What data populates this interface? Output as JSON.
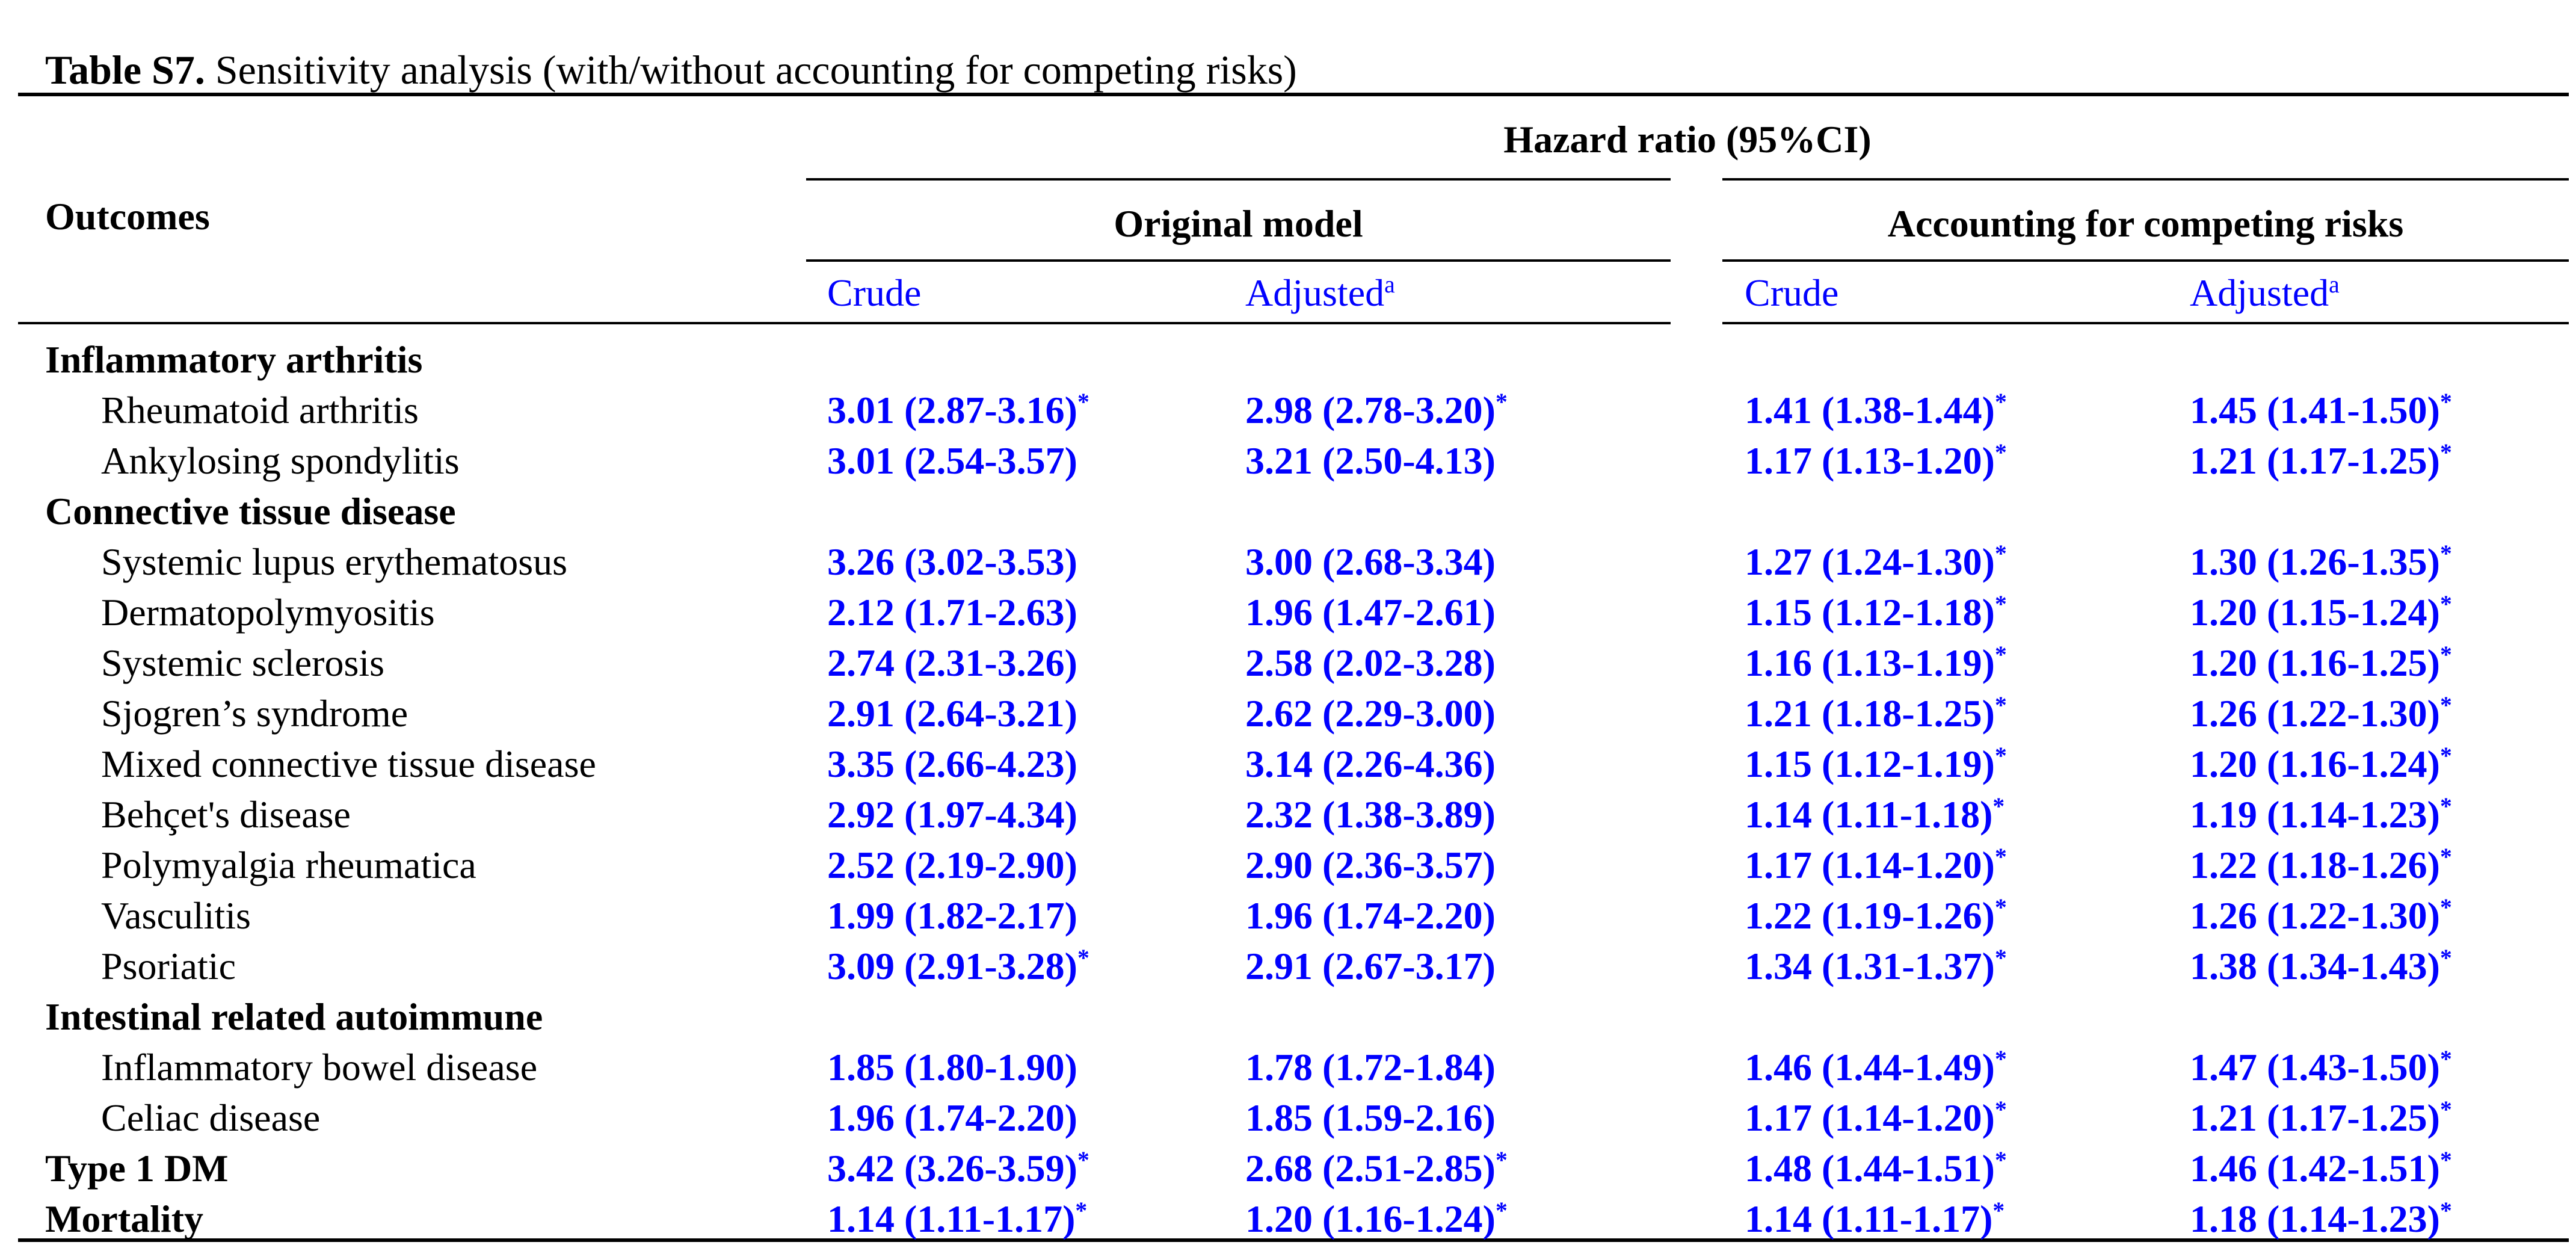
{
  "title": {
    "prefix": "Table S7.",
    "text": " Sensitivity analysis (with/without accounting for competing risks)"
  },
  "header": {
    "outcomes_label": "Outcomes",
    "span_label": "Hazard ratio (95%CI)",
    "group1_label": "Original model",
    "group2_label": "Accounting for competing risks",
    "crude_label": "Crude",
    "adjusted_label": "Adjusted",
    "adjusted_superscript": "a"
  },
  "symbols": {
    "significance_star": "*"
  },
  "colors": {
    "accent_blue": "#0101FE",
    "text_black": "#000000",
    "rule_black": "#000000"
  },
  "rows": [
    {
      "label": "Inflammatory arthritis",
      "category": true,
      "cells": null
    },
    {
      "label": "Rheumatoid arthritis",
      "category": false,
      "cells": [
        {
          "value": "3.01 (2.87-3.16)",
          "star": true
        },
        {
          "value": "2.98 (2.78-3.20)",
          "star": true
        },
        {
          "value": "1.41 (1.38-1.44)",
          "star": true
        },
        {
          "value": "1.45 (1.41-1.50)",
          "star": true
        }
      ]
    },
    {
      "label": "Ankylosing spondylitis",
      "category": false,
      "cells": [
        {
          "value": "3.01 (2.54-3.57)",
          "star": false
        },
        {
          "value": "3.21 (2.50-4.13)",
          "star": false
        },
        {
          "value": "1.17 (1.13-1.20)",
          "star": true
        },
        {
          "value": "1.21 (1.17-1.25)",
          "star": true
        }
      ]
    },
    {
      "label": "Connective tissue disease",
      "category": true,
      "cells": null
    },
    {
      "label": "Systemic lupus erythematosus",
      "category": false,
      "cells": [
        {
          "value": "3.26 (3.02-3.53)",
          "star": false
        },
        {
          "value": "3.00 (2.68-3.34)",
          "star": false
        },
        {
          "value": "1.27 (1.24-1.30)",
          "star": true
        },
        {
          "value": "1.30 (1.26-1.35)",
          "star": true
        }
      ]
    },
    {
      "label": "Dermatopolymyositis",
      "category": false,
      "cells": [
        {
          "value": "2.12 (1.71-2.63)",
          "star": false
        },
        {
          "value": "1.96 (1.47-2.61)",
          "star": false
        },
        {
          "value": "1.15 (1.12-1.18)",
          "star": true
        },
        {
          "value": "1.20 (1.15-1.24)",
          "star": true
        }
      ]
    },
    {
      "label": "Systemic sclerosis",
      "category": false,
      "cells": [
        {
          "value": "2.74 (2.31-3.26)",
          "star": false
        },
        {
          "value": "2.58 (2.02-3.28)",
          "star": false
        },
        {
          "value": "1.16 (1.13-1.19)",
          "star": true
        },
        {
          "value": "1.20 (1.16-1.25)",
          "star": true
        }
      ]
    },
    {
      "label": "Sjogren’s syndrome",
      "category": false,
      "cells": [
        {
          "value": "2.91 (2.64-3.21)",
          "star": false
        },
        {
          "value": "2.62 (2.29-3.00)",
          "star": false
        },
        {
          "value": "1.21 (1.18-1.25)",
          "star": true
        },
        {
          "value": "1.26 (1.22-1.30)",
          "star": true
        }
      ]
    },
    {
      "label": "Mixed connective tissue disease",
      "category": false,
      "cells": [
        {
          "value": "3.35 (2.66-4.23)",
          "star": false
        },
        {
          "value": "3.14 (2.26-4.36)",
          "star": false
        },
        {
          "value": "1.15 (1.12-1.19)",
          "star": true
        },
        {
          "value": "1.20 (1.16-1.24)",
          "star": true
        }
      ]
    },
    {
      "label": "Behçet's disease",
      "category": false,
      "cells": [
        {
          "value": "2.92 (1.97-4.34)",
          "star": false
        },
        {
          "value": "2.32 (1.38-3.89)",
          "star": false
        },
        {
          "value": "1.14 (1.11-1.18)",
          "star": true
        },
        {
          "value": "1.19 (1.14-1.23)",
          "star": true
        }
      ]
    },
    {
      "label": "Polymyalgia rheumatica",
      "category": false,
      "cells": [
        {
          "value": "2.52 (2.19-2.90)",
          "star": false
        },
        {
          "value": "2.90 (2.36-3.57)",
          "star": false
        },
        {
          "value": "1.17 (1.14-1.20)",
          "star": true
        },
        {
          "value": "1.22 (1.18-1.26)",
          "star": true
        }
      ]
    },
    {
      "label": "Vasculitis",
      "category": false,
      "cells": [
        {
          "value": "1.99 (1.82-2.17)",
          "star": false
        },
        {
          "value": "1.96 (1.74-2.20)",
          "star": false
        },
        {
          "value": "1.22 (1.19-1.26)",
          "star": true
        },
        {
          "value": "1.26 (1.22-1.30)",
          "star": true
        }
      ]
    },
    {
      "label": "Psoriatic",
      "category": false,
      "cells": [
        {
          "value": "3.09 (2.91-3.28)",
          "star": true
        },
        {
          "value": "2.91 (2.67-3.17)",
          "star": false
        },
        {
          "value": "1.34 (1.31-1.37)",
          "star": true
        },
        {
          "value": "1.38 (1.34-1.43)",
          "star": true
        }
      ]
    },
    {
      "label": "Intestinal related autoimmune",
      "category": true,
      "cells": null
    },
    {
      "label": "Inflammatory bowel disease",
      "category": false,
      "cells": [
        {
          "value": "1.85 (1.80-1.90)",
          "star": false
        },
        {
          "value": "1.78 (1.72-1.84)",
          "star": false
        },
        {
          "value": "1.46 (1.44-1.49)",
          "star": true
        },
        {
          "value": "1.47 (1.43-1.50)",
          "star": true
        }
      ]
    },
    {
      "label": "Celiac disease",
      "category": false,
      "cells": [
        {
          "value": "1.96 (1.74-2.20)",
          "star": false
        },
        {
          "value": "1.85 (1.59-2.16)",
          "star": false
        },
        {
          "value": "1.17 (1.14-1.20)",
          "star": true
        },
        {
          "value": "1.21 (1.17-1.25)",
          "star": true
        }
      ]
    },
    {
      "label": "Type 1 DM",
      "category": true,
      "cells": [
        {
          "value": "3.42 (3.26-3.59)",
          "star": true
        },
        {
          "value": "2.68 (2.51-2.85)",
          "star": true
        },
        {
          "value": "1.48 (1.44-1.51)",
          "star": true
        },
        {
          "value": "1.46 (1.42-1.51)",
          "star": true
        }
      ]
    },
    {
      "label": "Mortality",
      "category": true,
      "cells": [
        {
          "value": "1.14 (1.11-1.17)",
          "star": true
        },
        {
          "value": "1.20 (1.16-1.24)",
          "star": true
        },
        {
          "value": "1.14 (1.11-1.17)",
          "star": true
        },
        {
          "value": "1.18 (1.14-1.23)",
          "star": true
        }
      ]
    }
  ]
}
